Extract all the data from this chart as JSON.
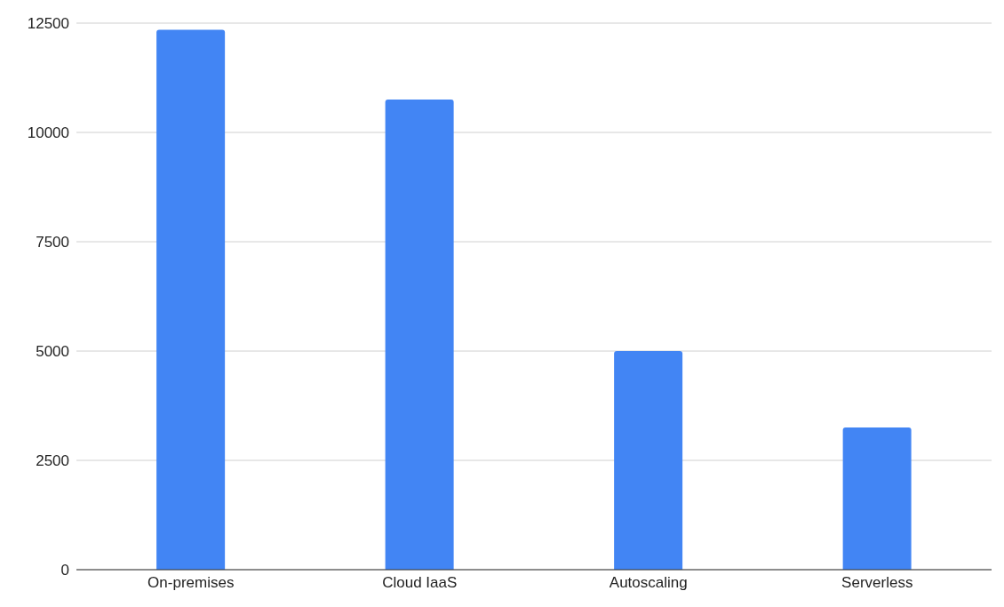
{
  "chart_data": {
    "type": "bar",
    "categories": [
      "On-premises",
      "Cloud IaaS",
      "Autoscaling",
      "Serverless"
    ],
    "values": [
      12350,
      10750,
      5000,
      3250
    ],
    "color": "#4285f4",
    "ylim": [
      0,
      12500
    ],
    "yticks": [
      0,
      2500,
      5000,
      7500,
      10000,
      12500
    ],
    "grid": "y"
  }
}
